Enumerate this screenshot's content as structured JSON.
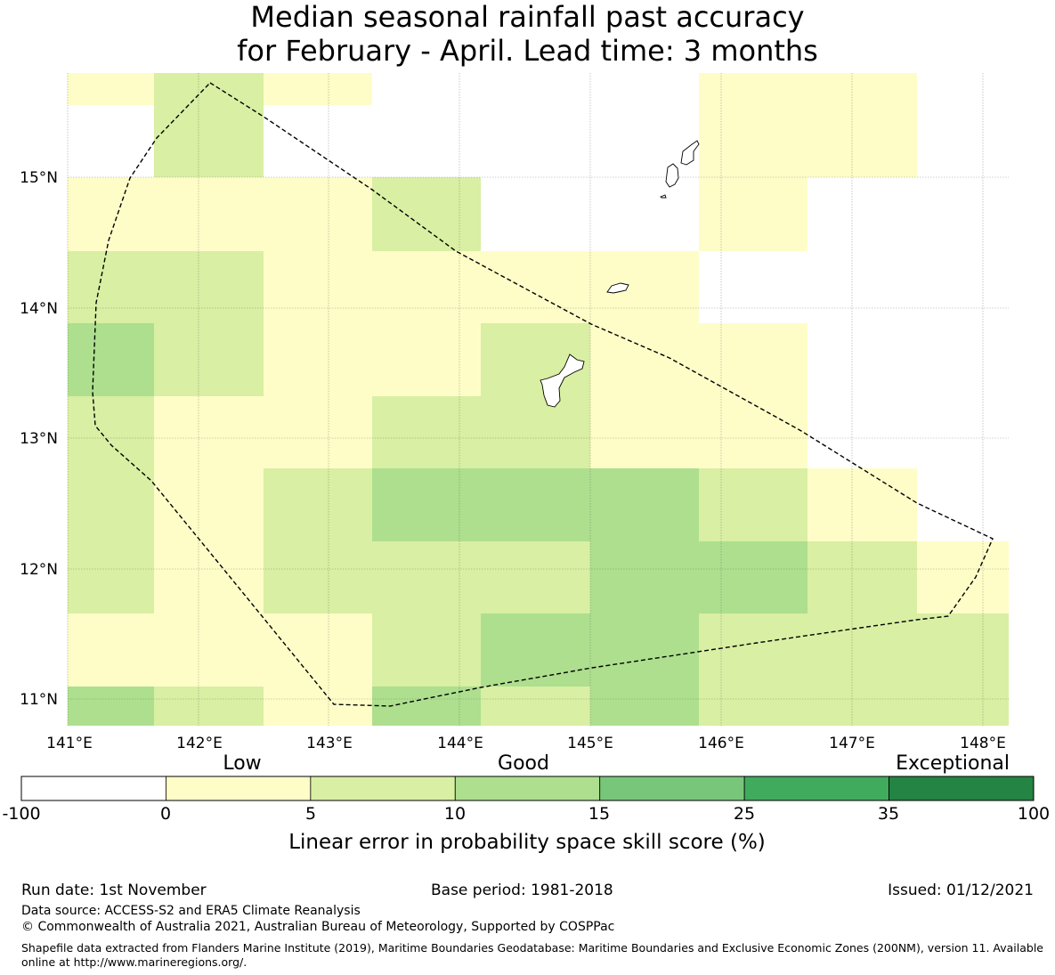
{
  "title": {
    "line1": "Median seasonal rainfall past accuracy",
    "line2": "for February - April. Lead time: 3 months"
  },
  "map": {
    "lon_ticks": [
      "141°E",
      "142°E",
      "143°E",
      "144°E",
      "145°E",
      "146°E",
      "147°E",
      "148°E"
    ],
    "lat_ticks": [
      "15°N",
      "14°N",
      "13°N",
      "12°N",
      "11°N"
    ],
    "category_colors": {
      "below_0": "#ffffff",
      "0-5": "#fefdc8",
      "5-10": "#d9efa3",
      "10-15": "#addf8e",
      "15-25": "#78c679",
      "25-35": "#41ab5d",
      "35-100": "#238443"
    },
    "grid_rows": [
      [
        "0-5",
        "5-10",
        "0-5",
        "none",
        "none",
        "none",
        "0-5",
        "0-5",
        "none"
      ],
      [
        "none",
        "5-10",
        "none",
        "none",
        "none",
        "none",
        "0-5",
        "0-5",
        "none"
      ],
      [
        "0-5",
        "0-5",
        "0-5",
        "5-10",
        "none",
        "none",
        "0-5",
        "none",
        "none"
      ],
      [
        "5-10",
        "5-10",
        "0-5",
        "0-5",
        "0-5",
        "0-5",
        "none",
        "none",
        "none"
      ],
      [
        "10-15",
        "5-10",
        "0-5",
        "0-5",
        "5-10",
        "0-5",
        "0-5",
        "none",
        "none"
      ],
      [
        "5-10",
        "0-5",
        "0-5",
        "5-10",
        "5-10",
        "0-5",
        "0-5",
        "none",
        "none"
      ],
      [
        "5-10",
        "0-5",
        "5-10",
        "10-15",
        "10-15",
        "10-15",
        "5-10",
        "0-5",
        "none"
      ],
      [
        "5-10",
        "0-5",
        "5-10",
        "5-10",
        "5-10",
        "10-15",
        "10-15",
        "5-10",
        "0-5"
      ],
      [
        "0-5",
        "0-5",
        "0-5",
        "5-10",
        "10-15",
        "10-15",
        "5-10",
        "5-10",
        "5-10"
      ],
      [
        "10-15",
        "5-10",
        "0-5",
        "10-15",
        "5-10",
        "10-15",
        "5-10",
        "5-10",
        "5-10"
      ]
    ]
  },
  "colorbar": {
    "category_labels": [
      "Low",
      "Good",
      "Exceptional"
    ],
    "tick_labels": [
      "-100",
      "0",
      "5",
      "10",
      "15",
      "25",
      "35",
      "100"
    ],
    "colors": [
      "#ffffff",
      "#fefdc8",
      "#d9efa3",
      "#addf8e",
      "#78c679",
      "#41ab5d",
      "#238443"
    ],
    "axis_label": "Linear error in probability space skill score (%)"
  },
  "footer": {
    "run_date": "Run date: 1st November",
    "base_period": "Base period: 1981-2018",
    "issued": "Issued: 01/12/2021",
    "data_source": "Data source: ACCESS-S2 and ERA5 Climate Reanalysis",
    "copyright": "© Commonwealth of Australia 2021, Australian Bureau of Meteorology, Supported by COSPPac",
    "shapefile": "Shapefile data extracted from Flanders Marine Institute (2019), Maritime Boundaries Geodatabase: Maritime Boundaries and Exclusive Economic Zones (200NM), version 11. Available online at http://www.marineregions.org/."
  }
}
